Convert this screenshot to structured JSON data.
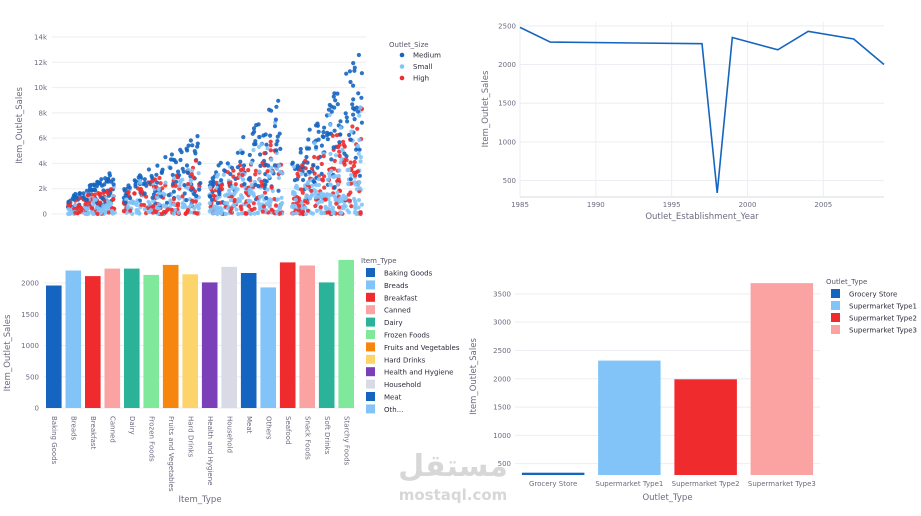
{
  "chart_data": [
    {
      "type": "scatter",
      "title": "",
      "xlabel": "",
      "ylabel": "Item_Outlet_Sales",
      "ylim": [
        0,
        14000
      ],
      "y_ticks": [
        "0",
        "2k",
        "4k",
        "6k",
        "8k",
        "10k",
        "12k",
        "14k"
      ],
      "y_tick_values": [
        0,
        2000,
        4000,
        6000,
        8000,
        10000,
        12000,
        14000
      ],
      "legend_title": "Outlet_Size",
      "legend_position": "top-right",
      "grid": true,
      "series": [
        {
          "name": "Medium",
          "color": "#1565c0"
        },
        {
          "name": "Small",
          "color": "#82c4f8"
        },
        {
          "name": "High",
          "color": "#ef2b2d"
        }
      ],
      "clusters": [
        {
          "x_range": [
            0.0,
            0.16
          ],
          "max_sales": 3500
        },
        {
          "x_range": [
            0.19,
            0.45
          ],
          "max_sales": 6500
        },
        {
          "x_range": [
            0.48,
            0.73
          ],
          "max_sales": 9500
        },
        {
          "x_range": [
            0.76,
            1.0
          ],
          "max_sales": 13000
        }
      ]
    },
    {
      "type": "line",
      "title": "",
      "xlabel": "Outlet_Establishment_Year",
      "ylabel": "Item_Outlet_Sales",
      "xlim": [
        1985,
        2009
      ],
      "ylim": [
        300,
        2550
      ],
      "x_ticks": [
        1985,
        1990,
        1995,
        2000,
        2005
      ],
      "y_ticks": [
        500,
        1000,
        1500,
        2000,
        2500
      ],
      "grid": true,
      "color": "#1565c0",
      "x": [
        1985,
        1987,
        1997,
        1998,
        1999,
        2002,
        2004,
        2007,
        2009
      ],
      "y": [
        2480,
        2290,
        2270,
        340,
        2350,
        2190,
        2430,
        2330,
        2000
      ]
    },
    {
      "type": "bar",
      "title": "",
      "xlabel": "Item_Type",
      "ylabel": "Item_Outlet_Sales",
      "ylim": [
        0,
        2400
      ],
      "y_ticks": [
        0,
        500,
        1000,
        1500,
        2000
      ],
      "legend_title": "Item_Type",
      "legend_position": "right",
      "grid": true,
      "categories": [
        "Baking Goods",
        "Breads",
        "Breakfast",
        "Canned",
        "Dairy",
        "Frozen Foods",
        "Fruits and Vegetables",
        "Hard Drinks",
        "Health and Hygiene",
        "Household",
        "Meat",
        "Others",
        "Seafood",
        "Snack Foods",
        "Soft Drinks",
        "Starchy Foods"
      ],
      "values": [
        1960,
        2200,
        2110,
        2230,
        2230,
        2130,
        2290,
        2140,
        2010,
        2260,
        2160,
        1930,
        2330,
        2280,
        2010,
        2370
      ],
      "colors": [
        "#1565c0",
        "#82c4f8",
        "#ef2b2d",
        "#fba3a3",
        "#2bb39a",
        "#7fe89b",
        "#f7860f",
        "#fdd46b",
        "#7b3fb8",
        "#d8dbe5",
        "#1565c0",
        "#82c4f8",
        "#ef2b2d",
        "#fba3a3",
        "#2bb39a",
        "#7fe89b"
      ],
      "legend_entries": [
        "Baking Goods",
        "Breads",
        "Breakfast",
        "Canned",
        "Dairy",
        "Frozen Foods",
        "Fruits and Vegetables",
        "Hard Drinks",
        "Health and Hygiene",
        "Household",
        "Meat",
        "Oth..."
      ]
    },
    {
      "type": "bar",
      "title": "",
      "xlabel": "Outlet_Type",
      "ylabel": "Item_Outlet_Sales",
      "ylim": [
        300,
        3780
      ],
      "y_ticks": [
        500,
        1000,
        1500,
        2000,
        2500,
        3000,
        3500
      ],
      "legend_title": "Outlet_Type",
      "legend_position": "top-right",
      "grid": true,
      "categories": [
        "Grocery Store",
        "Supermarket Type1",
        "Supermarket Type2",
        "Supermarket Type3"
      ],
      "values": [
        340,
        2320,
        1990,
        3690
      ],
      "colors": [
        "#1565c0",
        "#82c4f8",
        "#ef2b2d",
        "#fba3a3"
      ]
    }
  ],
  "watermark": {
    "arabic": "مستقل",
    "latin": "mostaql.com"
  }
}
